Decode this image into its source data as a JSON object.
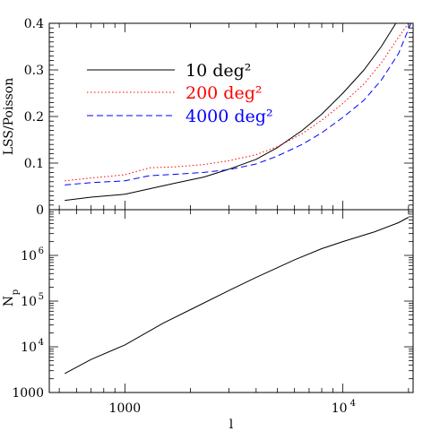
{
  "chart_data": [
    {
      "type": "line",
      "panel": "top",
      "title": "",
      "xlabel": "",
      "ylabel": "LSS/Poisson",
      "x_scale": "log",
      "xlim": [
        450,
        21000
      ],
      "ylim": [
        0,
        0.4
      ],
      "y_ticks": [
        "0",
        "0.1",
        "0.2",
        "0.3",
        "0.4"
      ],
      "legend_position": "top-left",
      "series": [
        {
          "name": "10 deg²",
          "color": "#000000",
          "style": "solid",
          "x": [
            530,
            700,
            1000,
            1300,
            1700,
            2300,
            3000,
            4000,
            5000,
            6500,
            8000,
            10000,
            12500,
            15000,
            17500
          ],
          "y": [
            0.02,
            0.027,
            0.033,
            0.045,
            0.057,
            0.07,
            0.087,
            0.108,
            0.133,
            0.17,
            0.205,
            0.25,
            0.3,
            0.35,
            0.4
          ]
        },
        {
          "name": "200 deg²",
          "color": "#ff0000",
          "style": "dotted",
          "x": [
            530,
            700,
            1000,
            1300,
            1700,
            2300,
            3000,
            4000,
            5000,
            6500,
            8000,
            10000,
            12500,
            15000,
            18000,
            20000
          ],
          "y": [
            0.062,
            0.068,
            0.075,
            0.09,
            0.092,
            0.097,
            0.105,
            0.118,
            0.135,
            0.163,
            0.192,
            0.228,
            0.27,
            0.315,
            0.37,
            0.4
          ]
        },
        {
          "name": "4000 deg²",
          "color": "#0000ff",
          "style": "dashed",
          "x": [
            530,
            700,
            1000,
            1300,
            1700,
            2300,
            3000,
            4000,
            5000,
            6500,
            8000,
            10000,
            12500,
            15000,
            18000,
            20500
          ],
          "y": [
            0.053,
            0.058,
            0.062,
            0.073,
            0.076,
            0.08,
            0.086,
            0.098,
            0.115,
            0.14,
            0.165,
            0.198,
            0.235,
            0.278,
            0.335,
            0.4
          ]
        }
      ]
    },
    {
      "type": "line",
      "panel": "bottom",
      "title": "",
      "xlabel": "l",
      "ylabel": "N",
      "ylabel_sub": "p",
      "x_scale": "log",
      "y_scale": "log",
      "xlim": [
        450,
        21000
      ],
      "ylim": [
        1000,
        10000000
      ],
      "x_ticks": [
        {
          "value": 1000,
          "label": "1000"
        },
        {
          "value": 10000,
          "label": "10",
          "exp": "4"
        }
      ],
      "y_ticks": [
        {
          "value": 1000,
          "label": "1000"
        },
        {
          "value": 10000,
          "label": "10",
          "exp": "4"
        },
        {
          "value": 100000,
          "label": "10",
          "exp": "5"
        },
        {
          "value": 1000000,
          "label": "10",
          "exp": "6"
        }
      ],
      "series": [
        {
          "name": "",
          "color": "#000000",
          "style": "solid",
          "x": [
            530,
            700,
            1000,
            1500,
            2000,
            3000,
            4000,
            6000,
            8000,
            10000,
            14000,
            18000,
            20000
          ],
          "y": [
            2600,
            5300,
            11000,
            33000,
            65000,
            170000,
            330000,
            800000,
            1400000,
            2000000,
            3300000,
            5200000,
            6800000
          ]
        }
      ]
    }
  ]
}
